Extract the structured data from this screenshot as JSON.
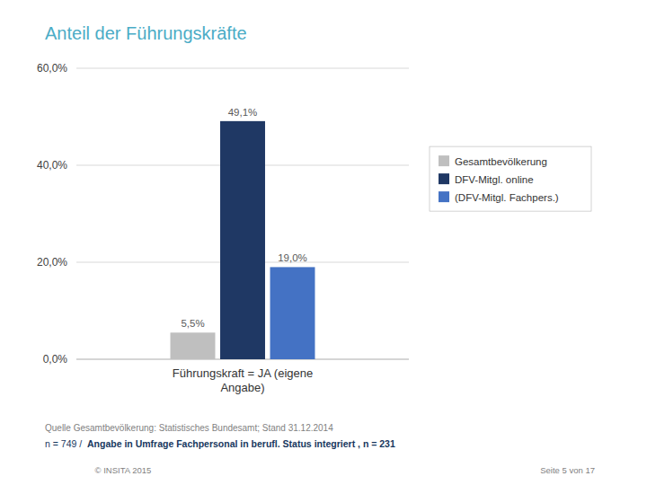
{
  "chart_data": {
    "type": "bar",
    "title": "Anteil der Führungskräfte",
    "categories": [
      "Führungskraft = JA (eigene\nAngabe)"
    ],
    "series": [
      {
        "name": "Gesamtbevölkerung",
        "color": "#BFBFBF",
        "values": [
          5.5
        ],
        "value_labels": [
          "5,5%"
        ]
      },
      {
        "name": "DFV-Mitgl. online",
        "color": "#1F3864",
        "values": [
          49.1
        ],
        "value_labels": [
          "49,1%"
        ]
      },
      {
        "name": "(DFV-Mitgl. Fachpers.)",
        "color": "#4472C4",
        "values": [
          19.0
        ],
        "value_labels": [
          "19,0%"
        ]
      }
    ],
    "ylim": [
      0,
      60
    ],
    "yticks": [
      {
        "value": 0,
        "label": "0,0%"
      },
      {
        "value": 20,
        "label": "20,0%"
      },
      {
        "value": 40,
        "label": "40,0%"
      },
      {
        "value": 60,
        "label": "60,0%"
      }
    ],
    "grid": true,
    "legend": "right",
    "data_labels": true,
    "annotations": [
      "Quelle Gesamtbevölkerung: Statistisches Bundesamt; Stand 31.12.2014",
      "n = 749 /  ",
      "Angabe in Umfrage Fachpersonal in berufl. Status integriert , n = 231",
      "© INSITA 2015",
      "Seite 5 von 17"
    ]
  }
}
